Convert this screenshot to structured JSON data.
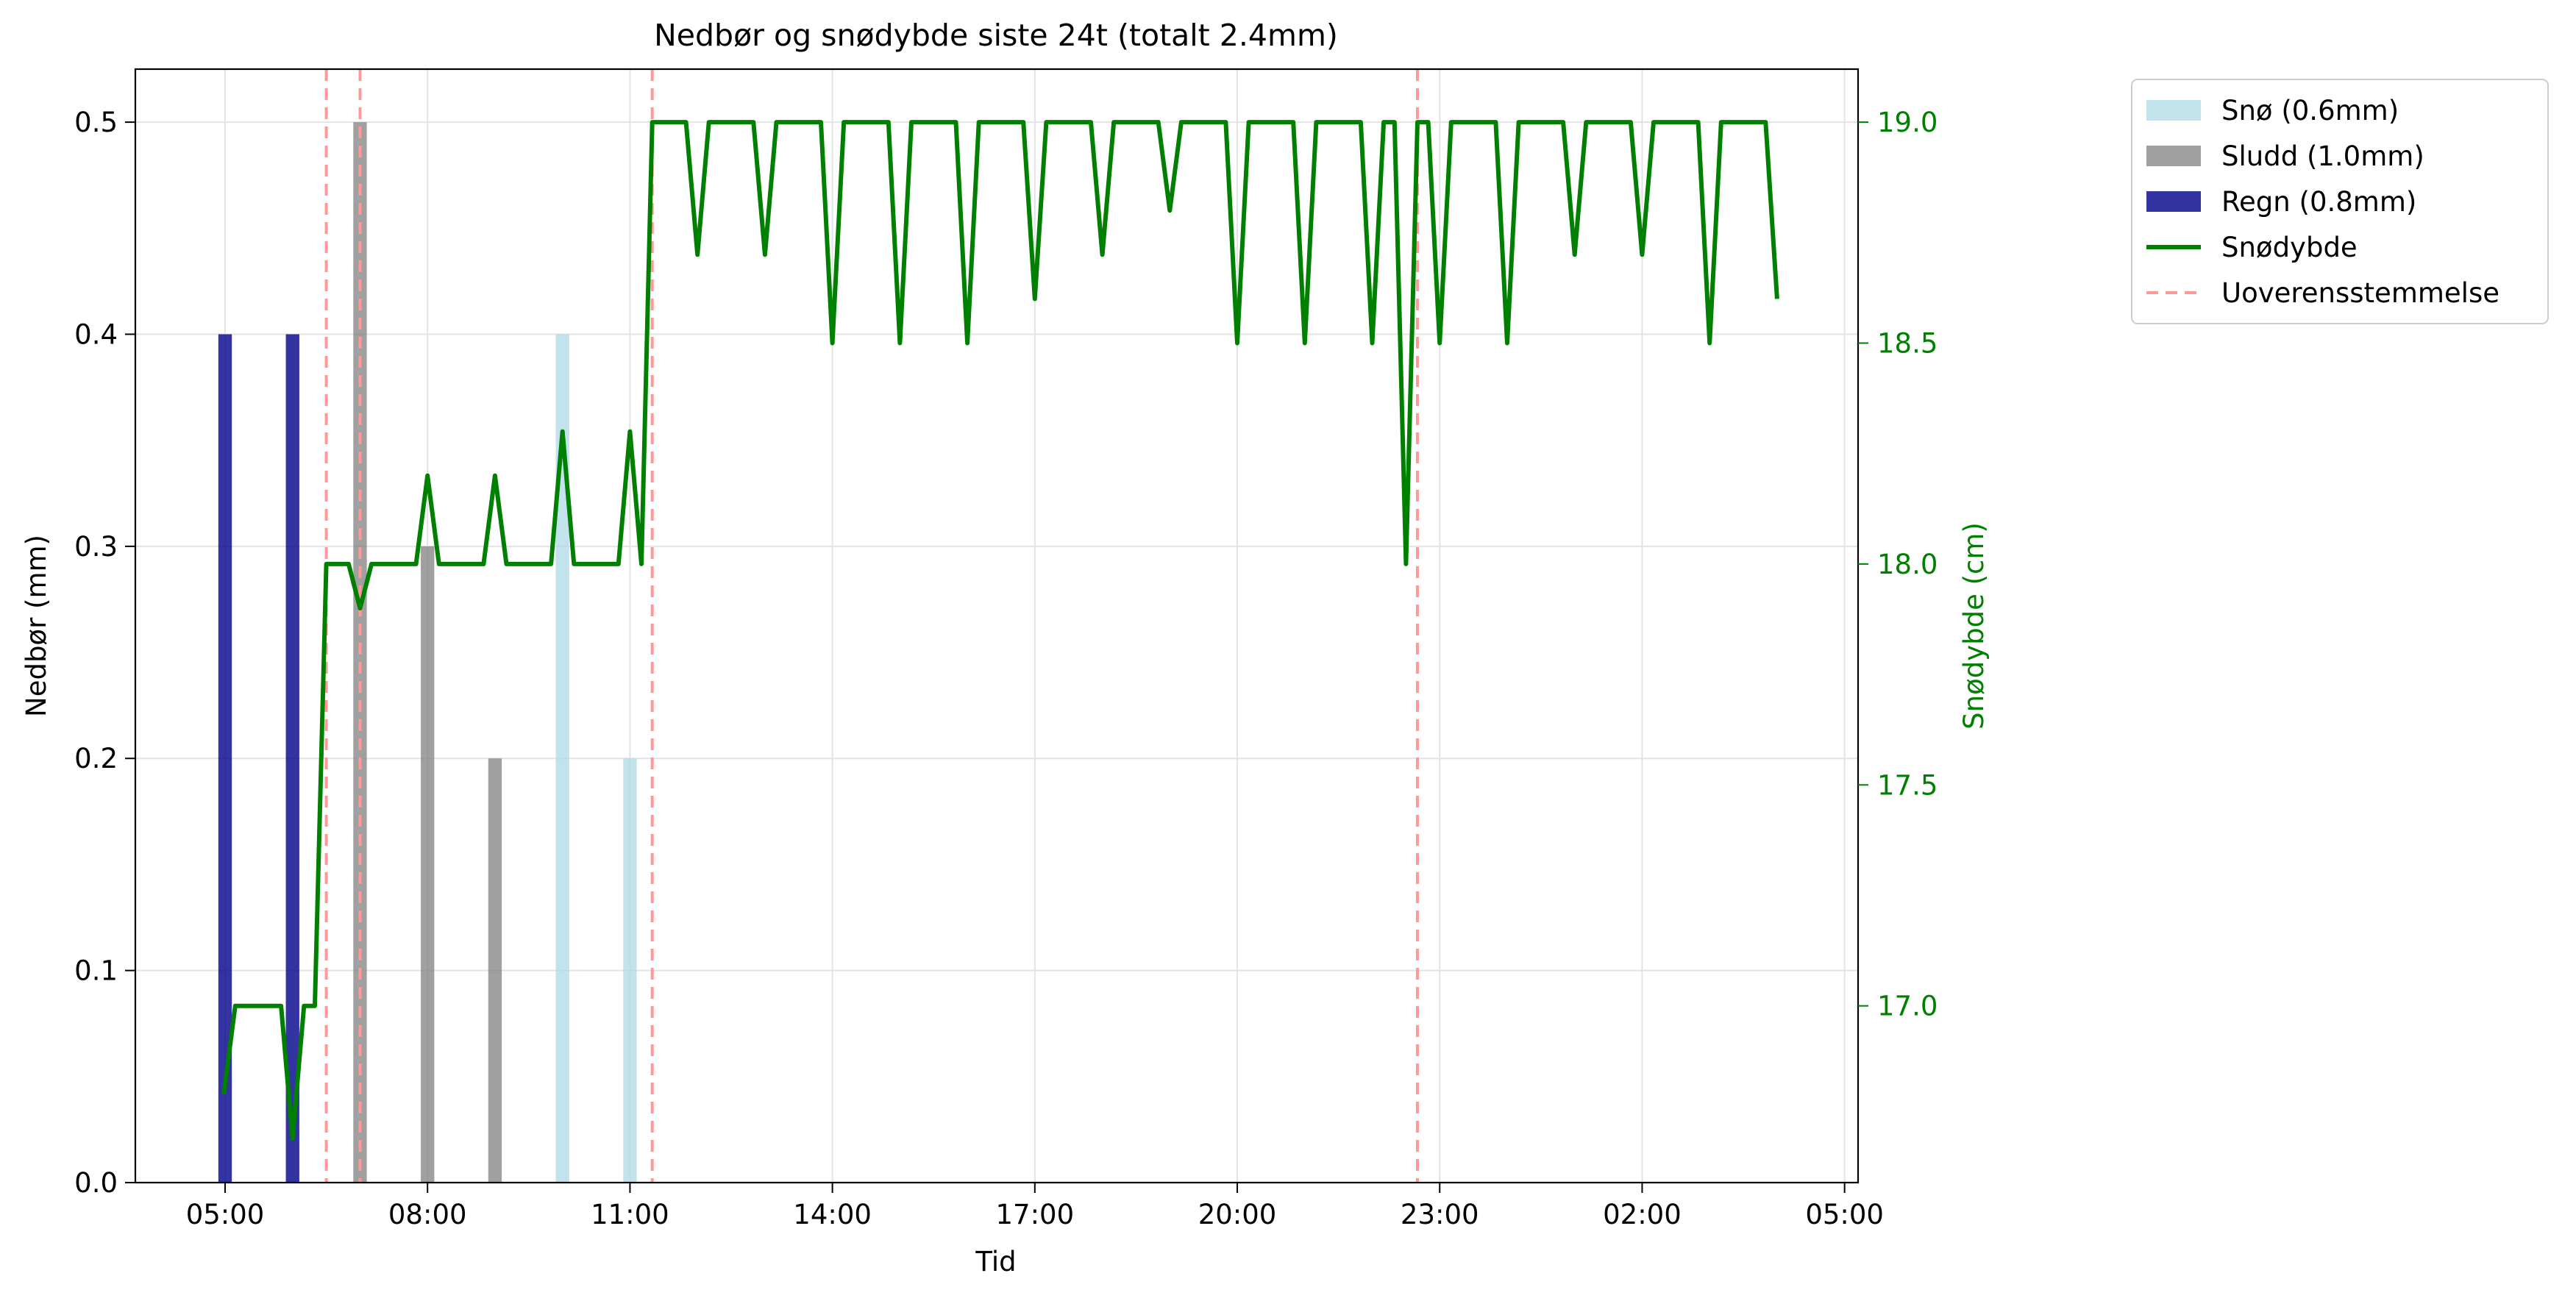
{
  "chart_data": {
    "type": "bar+line",
    "title": "Nedbør og snødybde siste 24t (totalt 2.4mm)",
    "xlabel": "Tid",
    "ylabel_left": "Nedbør (mm)",
    "ylabel_right": "Snødybde (cm)",
    "x_range_hours": [
      3.67,
      29.2
    ],
    "ylim_left": [
      0,
      0.525
    ],
    "ylim_right": [
      16.6,
      19.12
    ],
    "x_ticks": [
      {
        "h": 5,
        "label": "05:00"
      },
      {
        "h": 8,
        "label": "08:00"
      },
      {
        "h": 11,
        "label": "11:00"
      },
      {
        "h": 14,
        "label": "14:00"
      },
      {
        "h": 17,
        "label": "17:00"
      },
      {
        "h": 20,
        "label": "20:00"
      },
      {
        "h": 23,
        "label": "23:00"
      },
      {
        "h": 26,
        "label": "02:00"
      },
      {
        "h": 29,
        "label": "05:00"
      }
    ],
    "y_ticks_left": [
      {
        "v": 0,
        "label": "0.0"
      },
      {
        "v": 0.1,
        "label": "0.1"
      },
      {
        "v": 0.2,
        "label": "0.2"
      },
      {
        "v": 0.3,
        "label": "0.3"
      },
      {
        "v": 0.4,
        "label": "0.4"
      },
      {
        "v": 0.5,
        "label": "0.5"
      }
    ],
    "y_ticks_right": [
      {
        "v": 17.0,
        "label": "17.0"
      },
      {
        "v": 17.5,
        "label": "17.5"
      },
      {
        "v": 18.0,
        "label": "18.0"
      },
      {
        "v": 18.5,
        "label": "18.5"
      },
      {
        "v": 19.0,
        "label": "19.0"
      }
    ],
    "grid": true,
    "legend_placement": "outside-top-right",
    "colors": {
      "sno": "#add8e6",
      "sludd": "#808080",
      "regn": "#00008b",
      "snodybde": "#008000",
      "uoverensstemmelse": "#ff9999"
    },
    "bar_width_hours": 0.2,
    "bars": [
      {
        "h": 5,
        "value": 0.4,
        "type": "regn"
      },
      {
        "h": 6,
        "value": 0.4,
        "type": "regn"
      },
      {
        "h": 7,
        "value": 0.5,
        "type": "sludd"
      },
      {
        "h": 8,
        "value": 0.3,
        "type": "sludd"
      },
      {
        "h": 9,
        "value": 0.2,
        "type": "sludd"
      },
      {
        "h": 10,
        "value": 0.4,
        "type": "sno"
      },
      {
        "h": 11,
        "value": 0.2,
        "type": "sno"
      }
    ],
    "discrepancy_lines_hours": [
      6.5,
      7.0,
      11.33,
      22.67
    ],
    "snow_depth": [
      [
        4.98,
        16.8
      ],
      [
        5.15,
        17.0
      ],
      [
        5.5,
        17.0
      ],
      [
        5.83,
        17.0
      ],
      [
        6.0,
        16.7
      ],
      [
        6.17,
        17.0
      ],
      [
        6.33,
        17.0
      ],
      [
        6.5,
        18.0
      ],
      [
        6.83,
        18.0
      ],
      [
        7.0,
        17.9
      ],
      [
        7.17,
        18.0
      ],
      [
        7.5,
        18.0
      ],
      [
        7.83,
        18.0
      ],
      [
        8.0,
        18.2
      ],
      [
        8.17,
        18.0
      ],
      [
        8.5,
        18.0
      ],
      [
        8.83,
        18.0
      ],
      [
        9.0,
        18.2
      ],
      [
        9.17,
        18.0
      ],
      [
        9.5,
        18.0
      ],
      [
        9.83,
        18.0
      ],
      [
        10.0,
        18.3
      ],
      [
        10.17,
        18.0
      ],
      [
        10.5,
        18.0
      ],
      [
        10.83,
        18.0
      ],
      [
        11.0,
        18.3
      ],
      [
        11.17,
        18.0
      ],
      [
        11.33,
        19.0
      ],
      [
        11.67,
        19.0
      ],
      [
        11.83,
        19.0
      ],
      [
        12.0,
        18.7
      ],
      [
        12.17,
        19.0
      ],
      [
        12.5,
        19.0
      ],
      [
        12.83,
        19.0
      ],
      [
        13.0,
        18.7
      ],
      [
        13.17,
        19.0
      ],
      [
        13.5,
        19.0
      ],
      [
        13.83,
        19.0
      ],
      [
        14.0,
        18.5
      ],
      [
        14.17,
        19.0
      ],
      [
        14.5,
        19.0
      ],
      [
        14.83,
        19.0
      ],
      [
        15.0,
        18.5
      ],
      [
        15.17,
        19.0
      ],
      [
        15.5,
        19.0
      ],
      [
        15.83,
        19.0
      ],
      [
        16.0,
        18.5
      ],
      [
        16.17,
        19.0
      ],
      [
        16.5,
        19.0
      ],
      [
        16.83,
        19.0
      ],
      [
        17.0,
        18.6
      ],
      [
        17.17,
        19.0
      ],
      [
        17.5,
        19.0
      ],
      [
        17.83,
        19.0
      ],
      [
        18.0,
        18.7
      ],
      [
        18.17,
        19.0
      ],
      [
        18.5,
        19.0
      ],
      [
        18.83,
        19.0
      ],
      [
        19.0,
        18.8
      ],
      [
        19.17,
        19.0
      ],
      [
        19.5,
        19.0
      ],
      [
        19.83,
        19.0
      ],
      [
        20.0,
        18.5
      ],
      [
        20.17,
        19.0
      ],
      [
        20.5,
        19.0
      ],
      [
        20.83,
        19.0
      ],
      [
        21.0,
        18.5
      ],
      [
        21.17,
        19.0
      ],
      [
        21.5,
        19.0
      ],
      [
        21.83,
        19.0
      ],
      [
        22.0,
        18.5
      ],
      [
        22.17,
        19.0
      ],
      [
        22.33,
        19.0
      ],
      [
        22.5,
        18.0
      ],
      [
        22.67,
        19.0
      ],
      [
        22.83,
        19.0
      ],
      [
        23.0,
        18.5
      ],
      [
        23.17,
        19.0
      ],
      [
        23.5,
        19.0
      ],
      [
        23.83,
        19.0
      ],
      [
        24.0,
        18.5
      ],
      [
        24.17,
        19.0
      ],
      [
        24.5,
        19.0
      ],
      [
        24.83,
        19.0
      ],
      [
        25.0,
        18.7
      ],
      [
        25.17,
        19.0
      ],
      [
        25.5,
        19.0
      ],
      [
        25.83,
        19.0
      ],
      [
        26.0,
        18.7
      ],
      [
        26.17,
        19.0
      ],
      [
        26.5,
        19.0
      ],
      [
        26.83,
        19.0
      ],
      [
        27.0,
        18.5
      ],
      [
        27.17,
        19.0
      ],
      [
        27.5,
        19.0
      ],
      [
        27.83,
        19.0
      ],
      [
        28.0,
        18.6
      ]
    ],
    "legend": [
      {
        "key": "sno",
        "label": "Snø (0.6mm)",
        "kind": "patch"
      },
      {
        "key": "sludd",
        "label": "Sludd (1.0mm)",
        "kind": "patch"
      },
      {
        "key": "regn",
        "label": "Regn (0.8mm)",
        "kind": "patch"
      },
      {
        "key": "snodybde",
        "label": "Snødybde",
        "kind": "line"
      },
      {
        "key": "uoverensstemmelse",
        "label": "Uoverensstemmelse",
        "kind": "dashed"
      }
    ]
  }
}
